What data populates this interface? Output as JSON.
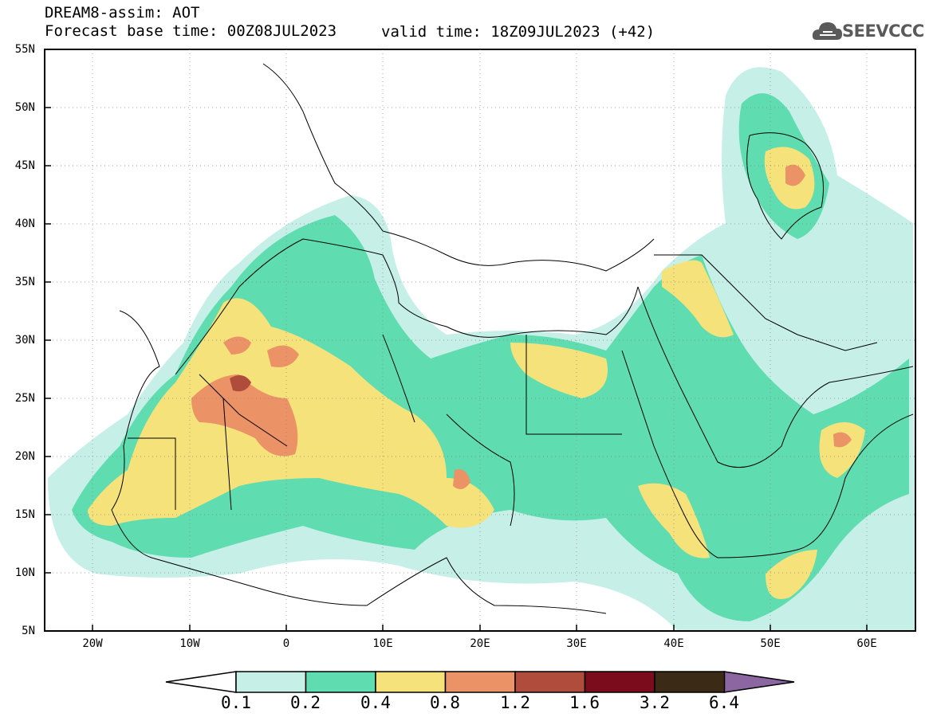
{
  "header": {
    "title": "DREAM8-assim: AOT",
    "base_time": "Forecast base time: 00Z08JUL2023",
    "valid_time": "valid time: 18Z09JUL2023 (+42)"
  },
  "logo": {
    "text": "SEEVCCC",
    "icon": "cloud-icon"
  },
  "map": {
    "lat_labels": [
      "55N",
      "50N",
      "45N",
      "40N",
      "35N",
      "30N",
      "25N",
      "20N",
      "15N",
      "10N",
      "5N"
    ],
    "lon_labels": [
      "20W",
      "10W",
      "0",
      "10E",
      "20E",
      "30E",
      "40E",
      "50E",
      "60E"
    ],
    "lon_range": [
      -25,
      65
    ],
    "lat_range": [
      5,
      55
    ]
  },
  "colorbar": {
    "labels": [
      "0.1",
      "0.2",
      "0.4",
      "0.8",
      "1.2",
      "1.6",
      "3.2",
      "6.4"
    ],
    "colors": [
      "#c6efe8",
      "#5fdcb0",
      "#f5e27a",
      "#eb9266",
      "#b04c3c",
      "#7a0c1c",
      "#3b2a15",
      "#8b66a0"
    ]
  }
}
